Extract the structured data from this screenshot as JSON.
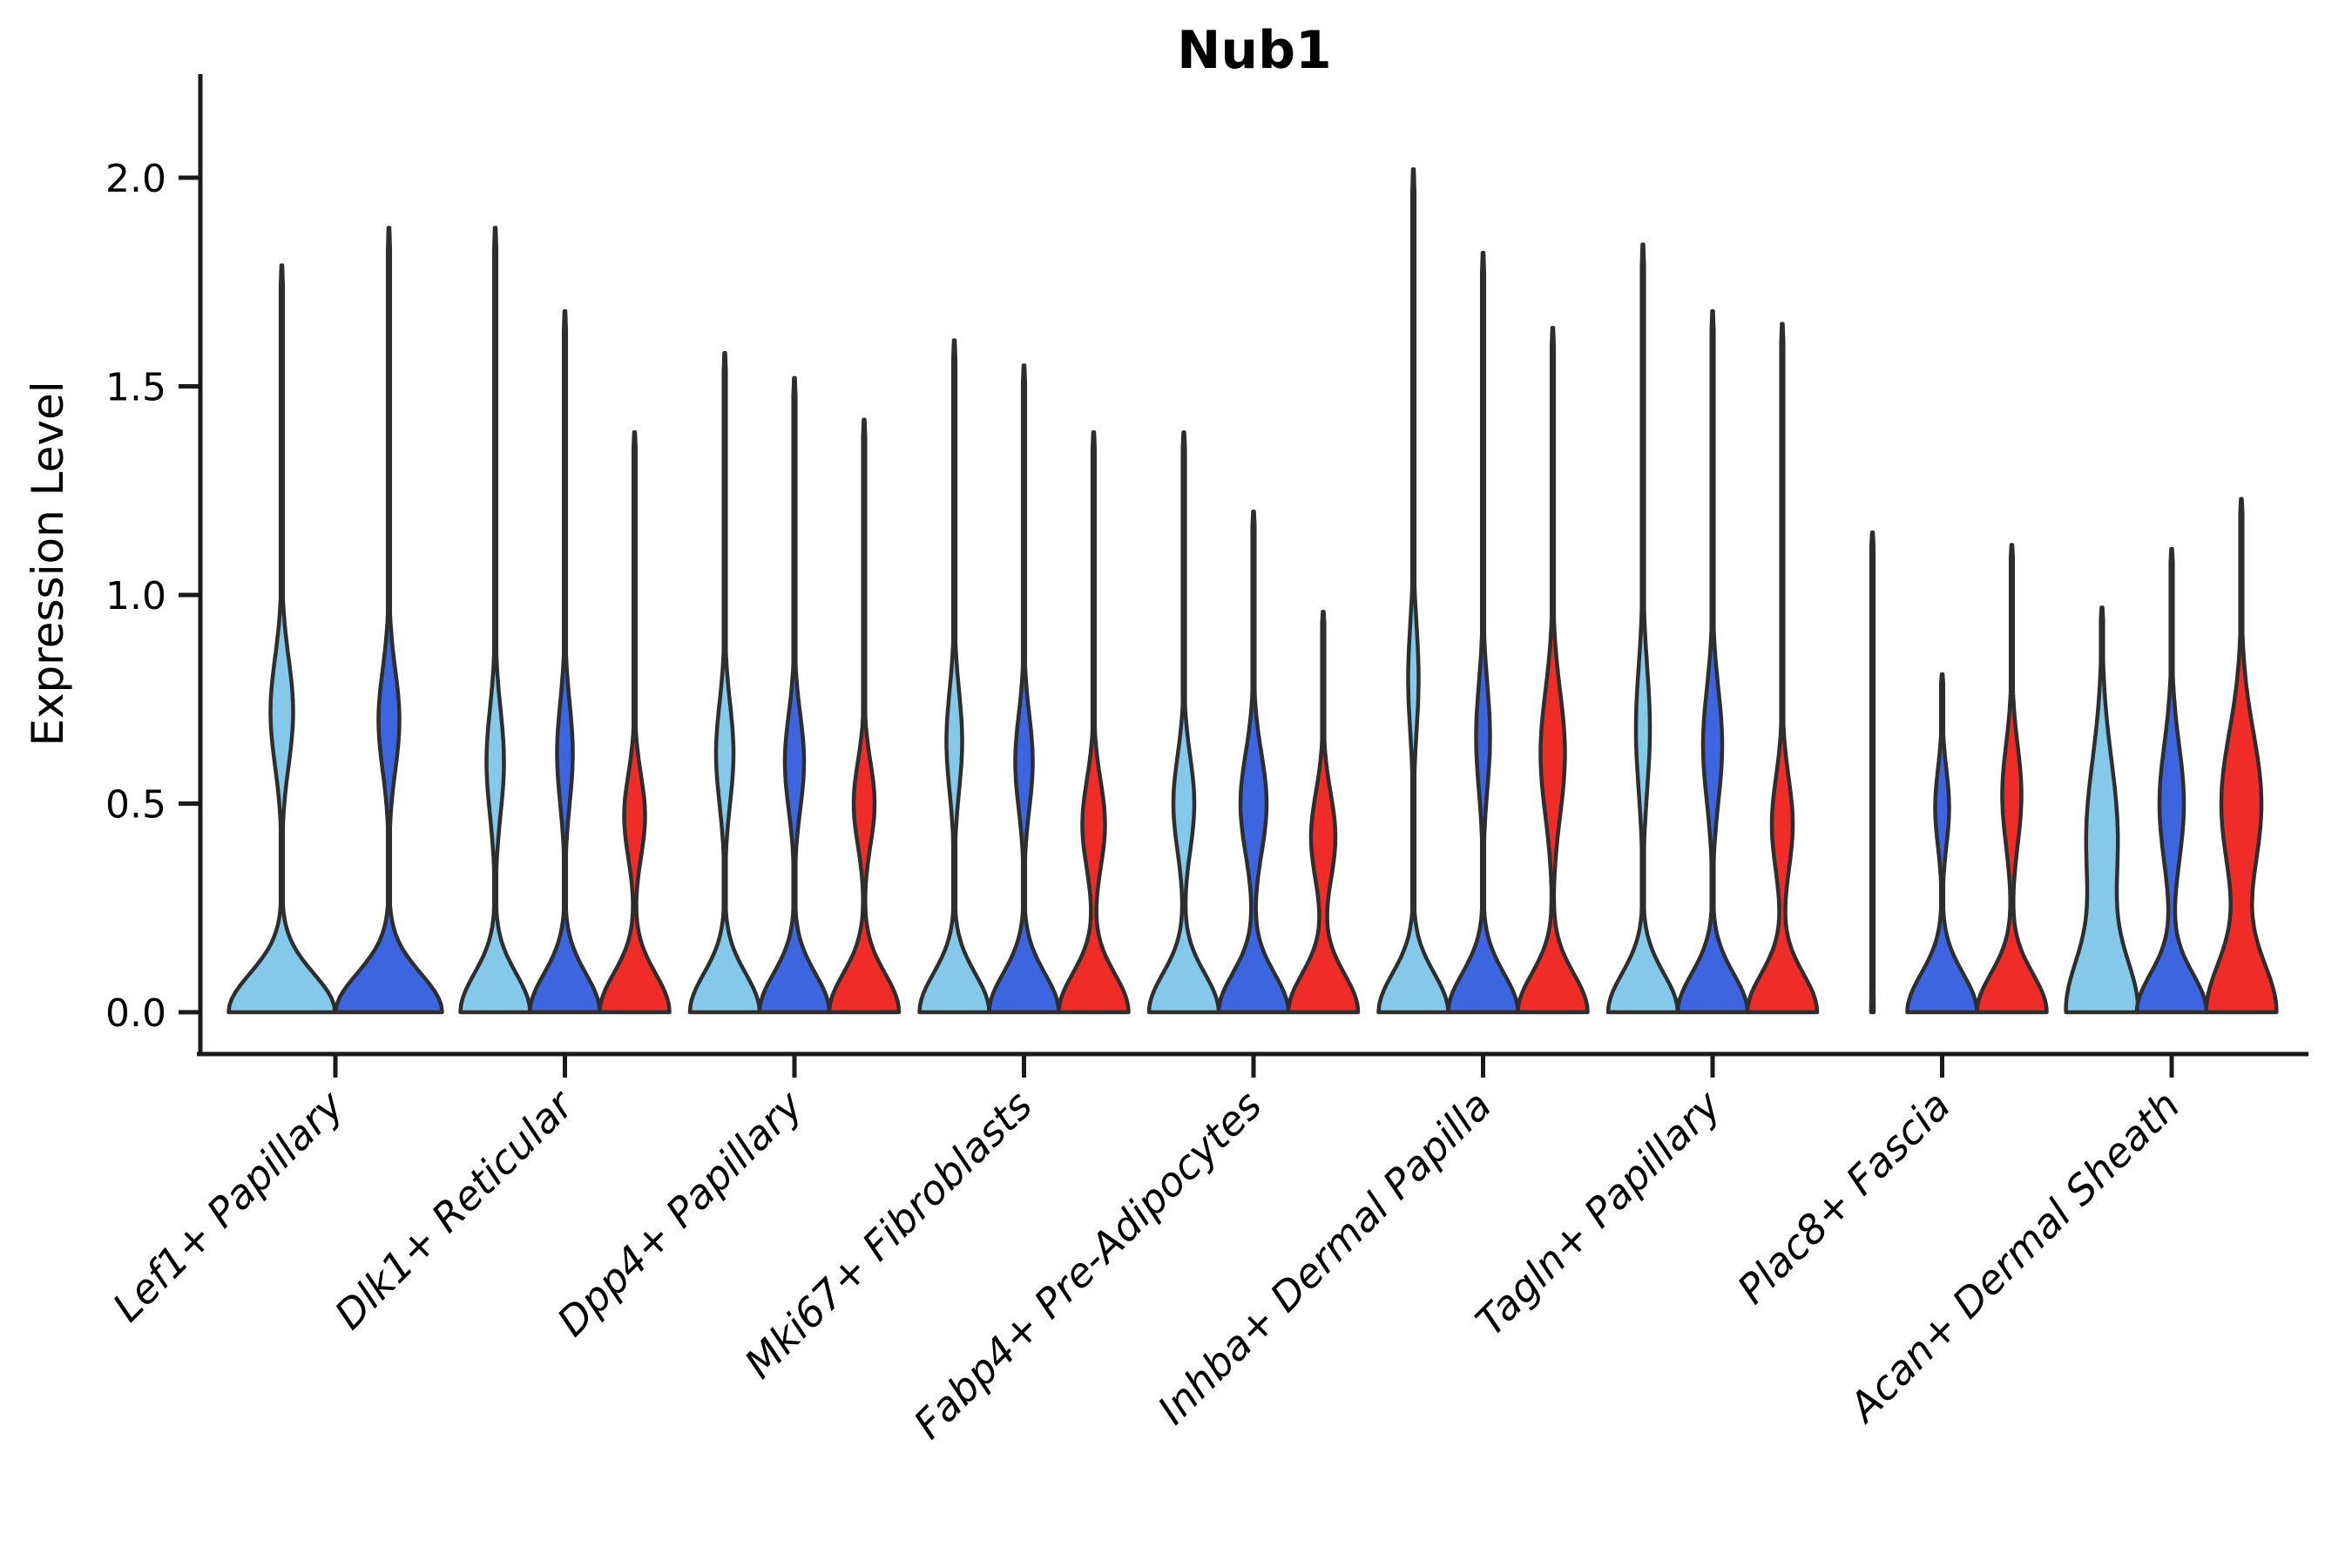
{
  "chart_data": {
    "type": "violin",
    "title": "Nub1",
    "ylabel": "Expression Level",
    "xlabel": "",
    "grid": false,
    "legend": "none",
    "ytick_labels": [
      "0.0",
      "0.5",
      "1.0",
      "1.5",
      "2.0"
    ],
    "ytick_values": [
      0.0,
      0.5,
      1.0,
      1.5,
      2.0
    ],
    "ylim": [
      -0.1,
      2.25
    ],
    "categories": [
      "Lef1+ Papillary",
      "Dlk1+ Reticular",
      "Dpp4+ Papillary",
      "Mki67+ Fibroblasts",
      "Fabp4+ Pre-Adipocytes",
      "Inhba+ Dermal Papilla",
      "Tagln+ Papillary",
      "Plac8+ Fascia",
      "Acan+ Dermal Sheath"
    ],
    "series_colors": {
      "light_blue": "#85C9EA",
      "dark_blue": "#3D65DF",
      "red": "#F02C28"
    },
    "edge_color": "#2E2E2E",
    "axis_color": "#1a1a1a",
    "groups": [
      {
        "category": "Lef1+ Papillary",
        "violins": [
          {
            "color": "light_blue",
            "max_expression": 1.79,
            "bulge_center": 0.72,
            "bulge_sigma": 0.18,
            "bulge_halfwidth": 13,
            "base_halfwidth": 61
          },
          {
            "color": "dark_blue",
            "max_expression": 1.88,
            "bulge_center": 0.7,
            "bulge_sigma": 0.17,
            "bulge_halfwidth": 12,
            "base_halfwidth": 61
          }
        ]
      },
      {
        "category": "Dlk1+ Reticular",
        "violins": [
          {
            "color": "light_blue",
            "max_expression": 1.88,
            "bulge_center": 0.6,
            "bulge_sigma": 0.18,
            "bulge_halfwidth": 10,
            "base_halfwidth": 40
          },
          {
            "color": "dark_blue",
            "max_expression": 1.68,
            "bulge_center": 0.62,
            "bulge_sigma": 0.17,
            "bulge_halfwidth": 9,
            "base_halfwidth": 40
          },
          {
            "color": "red",
            "max_expression": 1.39,
            "bulge_center": 0.47,
            "bulge_sigma": 0.14,
            "bulge_halfwidth": 12,
            "base_halfwidth": 40
          }
        ]
      },
      {
        "category": "Dpp4+ Papillary",
        "violins": [
          {
            "color": "light_blue",
            "max_expression": 1.58,
            "bulge_center": 0.62,
            "bulge_sigma": 0.17,
            "bulge_halfwidth": 10,
            "base_halfwidth": 40
          },
          {
            "color": "dark_blue",
            "max_expression": 1.52,
            "bulge_center": 0.6,
            "bulge_sigma": 0.16,
            "bulge_halfwidth": 11,
            "base_halfwidth": 40
          },
          {
            "color": "red",
            "max_expression": 1.42,
            "bulge_center": 0.5,
            "bulge_sigma": 0.14,
            "bulge_halfwidth": 12,
            "base_halfwidth": 40
          }
        ]
      },
      {
        "category": "Mki67+ Fibroblasts",
        "violins": [
          {
            "color": "light_blue",
            "max_expression": 1.61,
            "bulge_center": 0.65,
            "bulge_sigma": 0.17,
            "bulge_halfwidth": 9,
            "base_halfwidth": 40
          },
          {
            "color": "dark_blue",
            "max_expression": 1.55,
            "bulge_center": 0.6,
            "bulge_sigma": 0.16,
            "bulge_halfwidth": 10,
            "base_halfwidth": 40
          },
          {
            "color": "red",
            "max_expression": 1.39,
            "bulge_center": 0.45,
            "bulge_sigma": 0.15,
            "bulge_halfwidth": 13,
            "base_halfwidth": 40
          }
        ]
      },
      {
        "category": "Fabp4+ Pre-Adipocytes",
        "violins": [
          {
            "color": "light_blue",
            "max_expression": 1.39,
            "bulge_center": 0.5,
            "bulge_sigma": 0.16,
            "bulge_halfwidth": 12,
            "base_halfwidth": 40
          },
          {
            "color": "dark_blue",
            "max_expression": 1.2,
            "bulge_center": 0.5,
            "bulge_sigma": 0.17,
            "bulge_halfwidth": 15,
            "base_halfwidth": 40
          },
          {
            "color": "red",
            "max_expression": 0.96,
            "bulge_center": 0.42,
            "bulge_sigma": 0.15,
            "bulge_halfwidth": 14,
            "base_halfwidth": 40
          }
        ]
      },
      {
        "category": "Inhba+ Dermal Papilla",
        "violins": [
          {
            "color": "light_blue",
            "max_expression": 2.02,
            "bulge_center": 0.8,
            "bulge_sigma": 0.18,
            "bulge_halfwidth": 6,
            "base_halfwidth": 40
          },
          {
            "color": "dark_blue",
            "max_expression": 1.82,
            "bulge_center": 0.66,
            "bulge_sigma": 0.18,
            "bulge_halfwidth": 8,
            "base_halfwidth": 40
          },
          {
            "color": "red",
            "max_expression": 1.64,
            "bulge_center": 0.62,
            "bulge_sigma": 0.21,
            "bulge_halfwidth": 14,
            "base_halfwidth": 40
          }
        ]
      },
      {
        "category": "Tagln+ Papillary",
        "violins": [
          {
            "color": "light_blue",
            "max_expression": 1.84,
            "bulge_center": 0.68,
            "bulge_sigma": 0.21,
            "bulge_halfwidth": 8,
            "base_halfwidth": 40
          },
          {
            "color": "dark_blue",
            "max_expression": 1.68,
            "bulge_center": 0.64,
            "bulge_sigma": 0.19,
            "bulge_halfwidth": 11,
            "base_halfwidth": 40
          },
          {
            "color": "red",
            "max_expression": 1.65,
            "bulge_center": 0.45,
            "bulge_sigma": 0.16,
            "bulge_halfwidth": 12,
            "base_halfwidth": 40
          }
        ]
      },
      {
        "category": "Plac8+ Fascia",
        "violins": [
          {
            "color": "light_blue",
            "max_expression": 1.15,
            "bulge_center": 0.5,
            "bulge_sigma": 0.15,
            "bulge_halfwidth": 0,
            "base_halfwidth": 1.5
          },
          {
            "color": "dark_blue",
            "max_expression": 0.81,
            "bulge_center": 0.49,
            "bulge_sigma": 0.13,
            "bulge_halfwidth": 8,
            "base_halfwidth": 40
          },
          {
            "color": "red",
            "max_expression": 1.12,
            "bulge_center": 0.52,
            "bulge_sigma": 0.17,
            "bulge_halfwidth": 11,
            "base_halfwidth": 40
          }
        ]
      },
      {
        "category": "Acan+ Dermal Sheath",
        "violins": [
          {
            "color": "light_blue",
            "max_expression": 0.97,
            "bulge_center": 0.42,
            "bulge_sigma": 0.26,
            "bulge_halfwidth": 18,
            "base_halfwidth": 40,
            "base_sigma": 0.18
          },
          {
            "color": "dark_blue",
            "max_expression": 1.11,
            "bulge_center": 0.5,
            "bulge_sigma": 0.2,
            "bulge_halfwidth": 14,
            "base_halfwidth": 40
          },
          {
            "color": "red",
            "max_expression": 1.23,
            "bulge_center": 0.5,
            "bulge_sigma": 0.24,
            "bulge_halfwidth": 23,
            "base_halfwidth": 40,
            "base_sigma": 0.17
          }
        ]
      }
    ]
  }
}
